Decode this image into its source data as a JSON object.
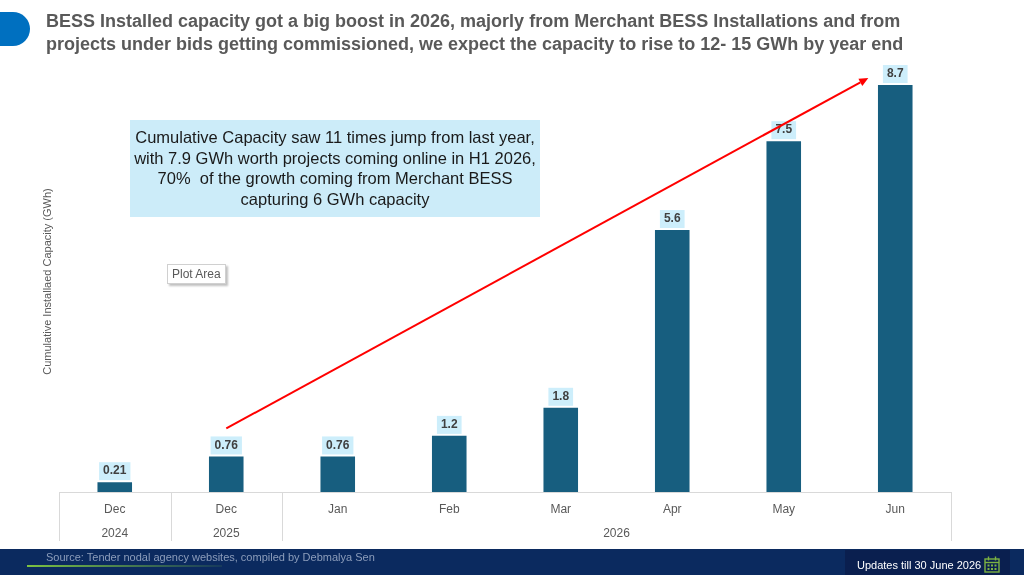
{
  "chart_data": {
    "type": "bar",
    "title": "BESS Installed capacity got a big boost in 2026, majorly from Merchant BESS Installations and from projects under bids getting commissioned, we expect the capacity to rise to 12- 15 GWh by year end",
    "ylabel": "Cumulative Installaed Capacity (GWh)",
    "categories": [
      "Dec",
      "Dec",
      "Jan",
      "Feb",
      "Mar",
      "Apr",
      "May",
      "Jun"
    ],
    "values": [
      0.21,
      0.76,
      0.76,
      1.2,
      1.8,
      5.6,
      7.5,
      8.7
    ],
    "color": "#175e7f",
    "data_labels": true,
    "annotations": [
      "Cumulative Capacity saw 11 times jump from last year, with 7.9 GWh worth projects coming online in H1 2026, 70%  of the growth coming from Merchant BESS capturing 6 GWh capacity",
      "Plot Area",
      "2024",
      "2025",
      "2026",
      "Source: Tender nodal agency websites, compiled by Debmalya Sen",
      "Updates till 30 June 2026"
    ]
  }
}
